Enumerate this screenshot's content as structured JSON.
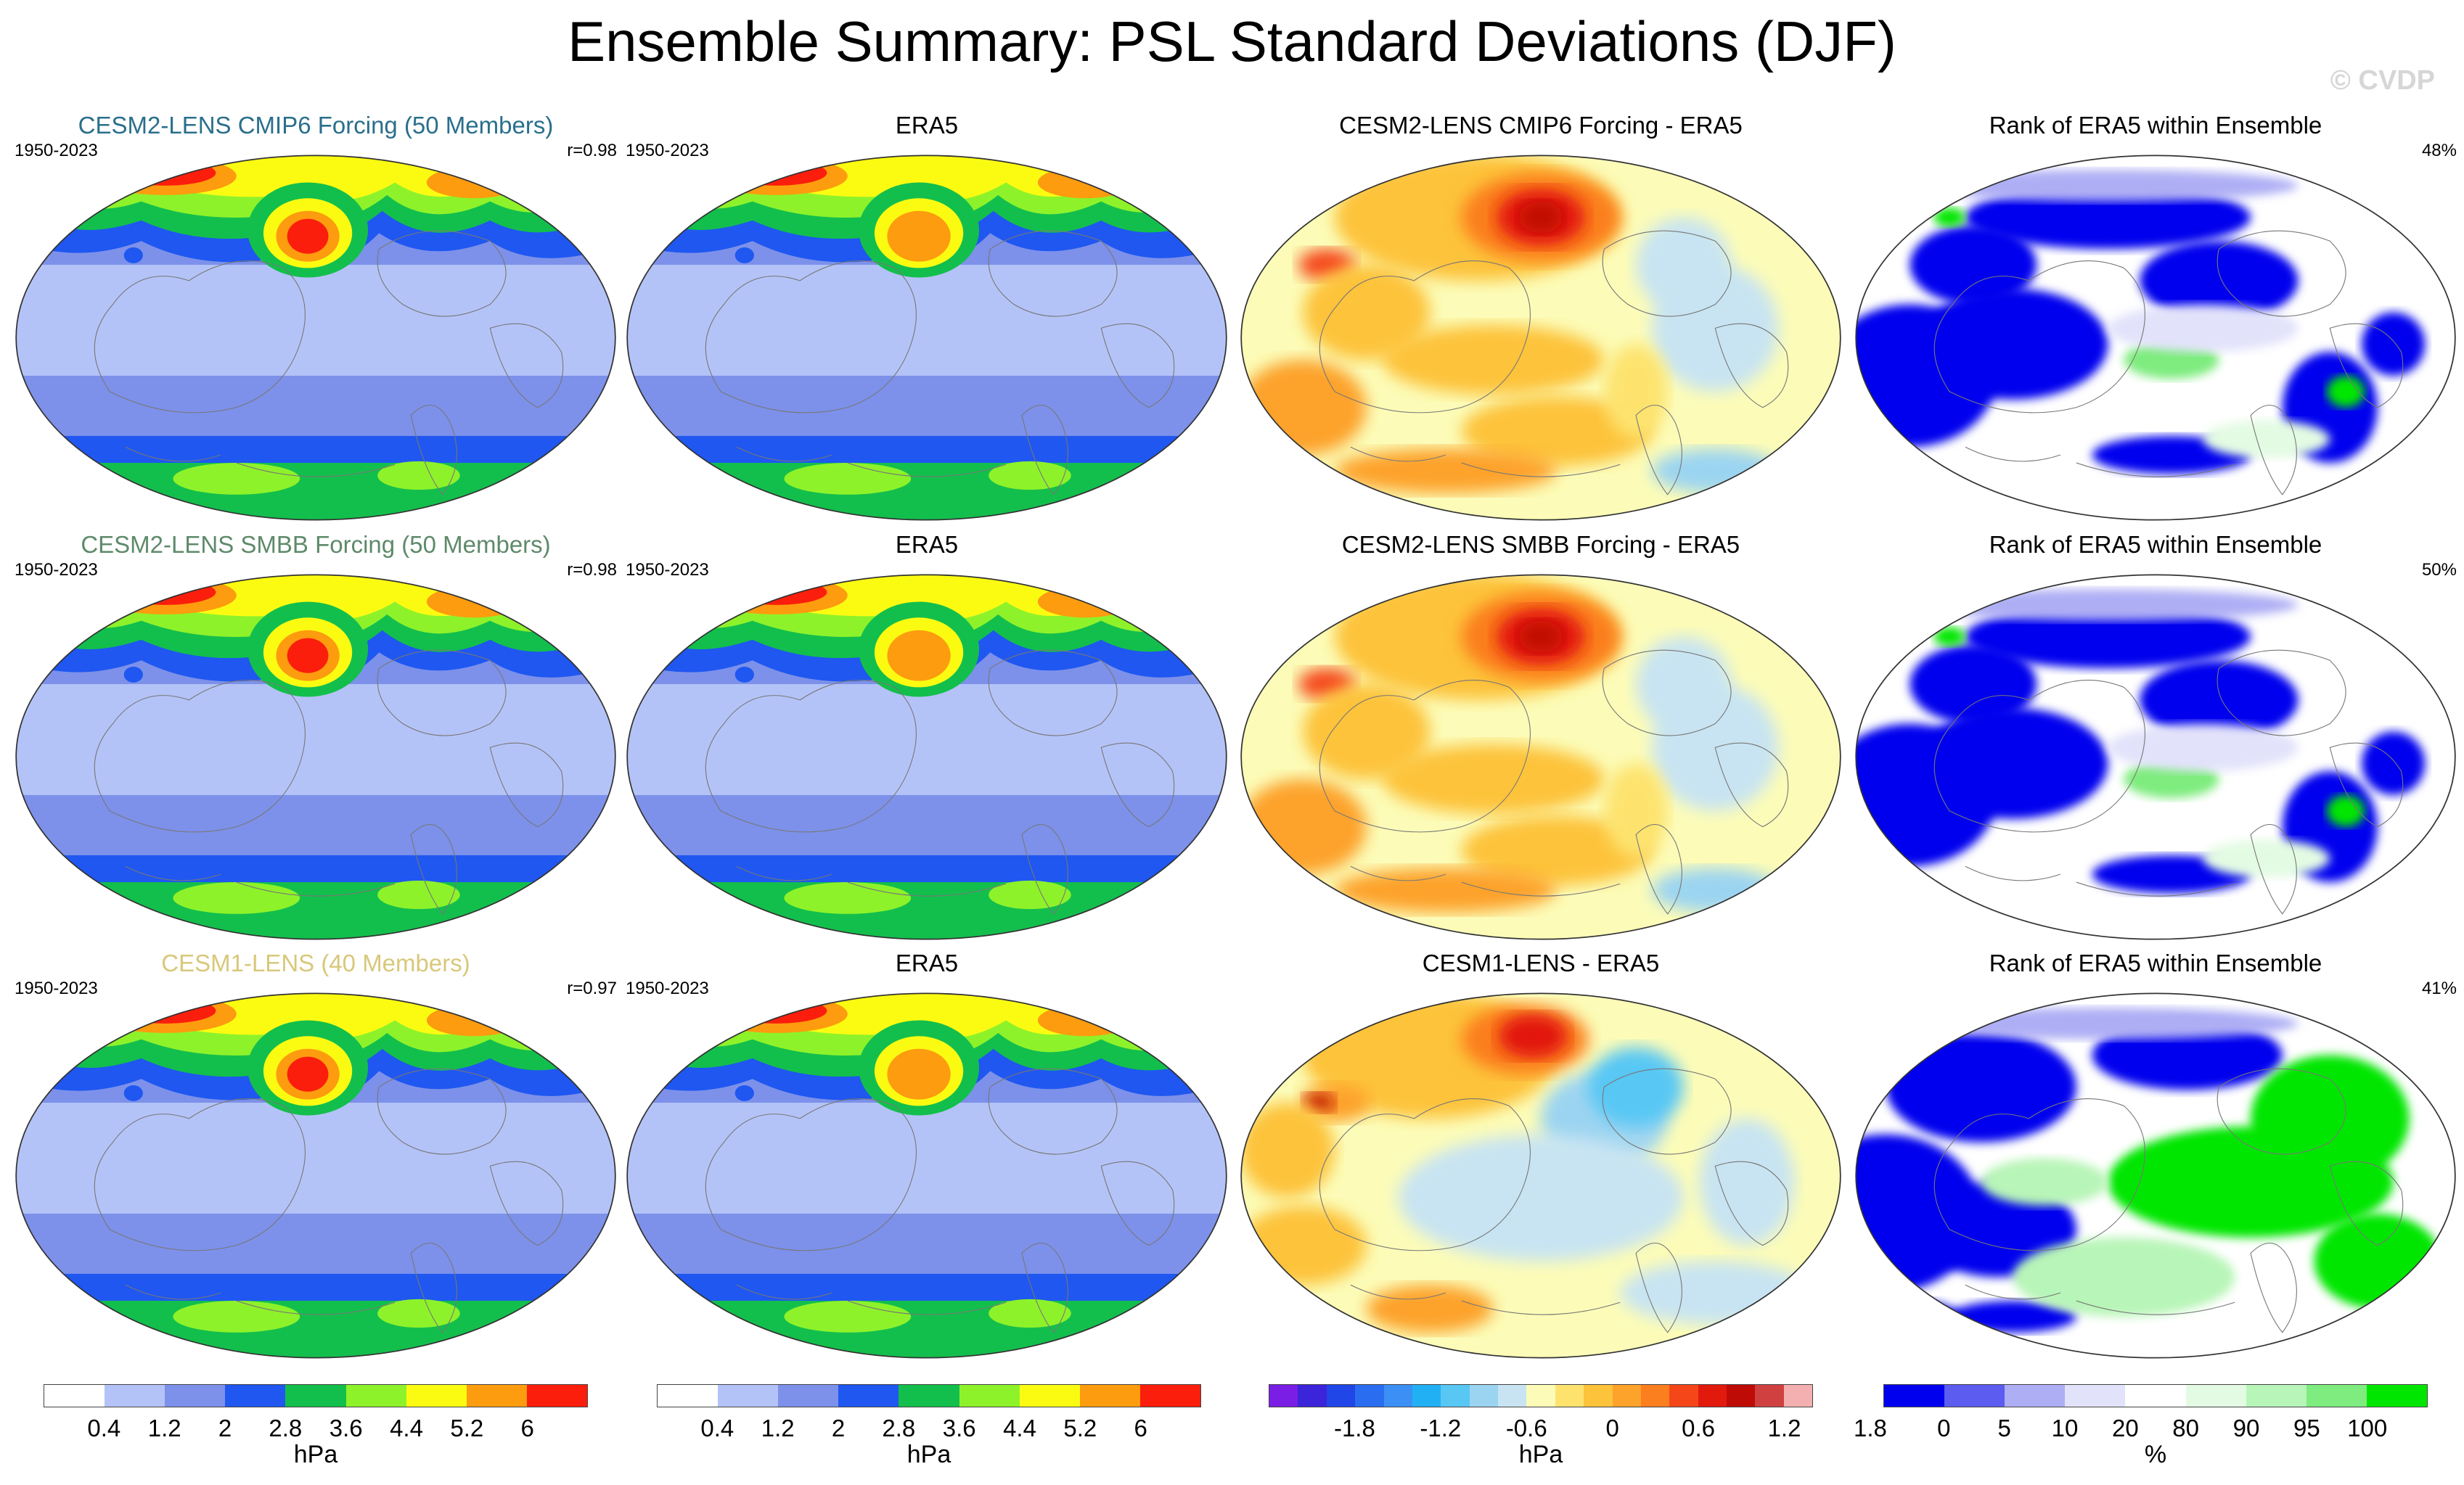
{
  "title": "Ensemble Summary: PSL Standard Deviations (DJF)",
  "watermark": "© CVDP",
  "rows": [
    {
      "model_title": "CESM2-LENS CMIP6 Forcing (50 Members)",
      "model_title_color": "#2a6f8c",
      "years_model": "1950-2023",
      "corr": "r=0.98",
      "obs_title": "ERA5",
      "years_obs": "1950-2023",
      "diff_title": "CESM2-LENS CMIP6 Forcing - ERA5",
      "rank_title": "Rank of ERA5 within Ensemble",
      "rank_pct": "48%"
    },
    {
      "model_title": "CESM2-LENS SMBB Forcing (50 Members)",
      "model_title_color": "#5e8a6a",
      "years_model": "1950-2023",
      "corr": "r=0.98",
      "obs_title": "ERA5",
      "years_obs": "1950-2023",
      "diff_title": "CESM2-LENS SMBB Forcing - ERA5",
      "rank_title": "Rank of ERA5 within Ensemble",
      "rank_pct": "50%"
    },
    {
      "model_title": "CESM1-LENS (40 Members)",
      "model_title_color": "#d8c87a",
      "years_model": "1950-2023",
      "corr": "r=0.97",
      "obs_title": "ERA5",
      "years_obs": "1950-2023",
      "diff_title": "CESM1-LENS - ERA5",
      "rank_title": "Rank of ERA5 within Ensemble",
      "rank_pct": "41%"
    }
  ],
  "colorbars": {
    "stddev": {
      "colors": [
        "#ffffff",
        "#b4c3f7",
        "#7d91ea",
        "#1f57f0",
        "#13bf4c",
        "#8ef22a",
        "#fbfb12",
        "#fd9c0e",
        "#fb1e0c"
      ],
      "ticks": [
        "0.4",
        "1.2",
        "2",
        "2.8",
        "3.6",
        "4.4",
        "5.2",
        "6"
      ],
      "unit": "hPa"
    },
    "diff": {
      "colors": [
        "#7a1ee6",
        "#3b24d9",
        "#2146e8",
        "#2b6df0",
        "#3c8ff5",
        "#22b0f5",
        "#58c7f4",
        "#9bd4f1",
        "#c8e4f2",
        "#fcfcb8",
        "#fde36e",
        "#fdc33a",
        "#fda22a",
        "#fb7e1f",
        "#f5461a",
        "#e2190d",
        "#bf0b06",
        "#d04040",
        "#f4b0b0"
      ],
      "ticks": [
        "-1.8",
        "-1.2",
        "-0.6",
        "0",
        "0.6",
        "1.2",
        "1.8"
      ],
      "unit": "hPa"
    },
    "rank": {
      "colors": [
        "#0000ee",
        "#5c5cf0",
        "#aeaef5",
        "#e2e2fb",
        "#ffffff",
        "#e3fbe3",
        "#b8f5b8",
        "#7eec7e",
        "#00e600"
      ],
      "ticks": [
        "0",
        "5",
        "10",
        "20",
        "80",
        "90",
        "95",
        "100"
      ],
      "unit": "%"
    }
  }
}
